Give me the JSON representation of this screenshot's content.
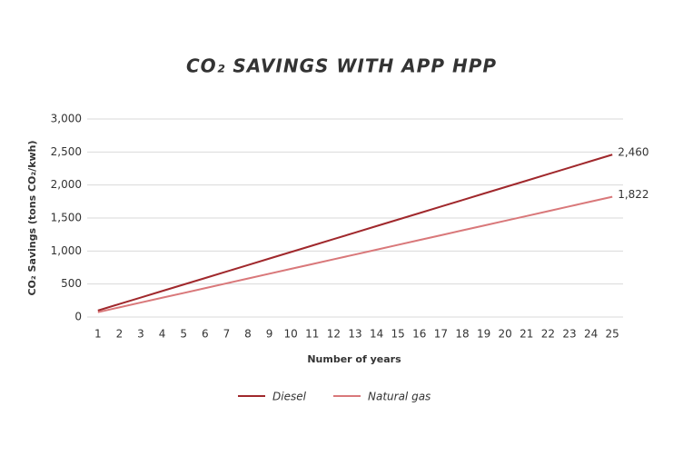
{
  "chart_data": {
    "type": "line",
    "title": "CO₂ SAVINGS WITH APP HPP",
    "x_label": "Number of years",
    "y_label": "CO₂ Savings (tons CO₂/kwh)",
    "x": [
      1,
      2,
      3,
      4,
      5,
      6,
      7,
      8,
      9,
      10,
      11,
      12,
      13,
      14,
      15,
      16,
      17,
      18,
      19,
      20,
      21,
      22,
      23,
      24,
      25
    ],
    "xlim": [
      0.5,
      25.5
    ],
    "xticks": [
      1,
      2,
      3,
      4,
      5,
      6,
      7,
      8,
      9,
      10,
      11,
      12,
      13,
      14,
      15,
      16,
      17,
      18,
      19,
      20,
      21,
      22,
      23,
      24,
      25
    ],
    "ylim": [
      0,
      3000
    ],
    "yticks": [
      0,
      500,
      {
        "value": 1000,
        "label": "1,000"
      },
      {
        "value": 1500,
        "label": "1,500"
      },
      {
        "value": 2000,
        "label": "2,000"
      },
      {
        "value": 2500,
        "label": "2,500"
      },
      {
        "value": 3000,
        "label": "3,000"
      }
    ],
    "grid": true,
    "legend": "bottom",
    "series": [
      {
        "name": "Diesel",
        "color": "#a0282c",
        "values": [
          98,
          197,
          295,
          394,
          492,
          590,
          689,
          787,
          886,
          984,
          1082,
          1181,
          1279,
          1378,
          1476,
          1574,
          1673,
          1771,
          1870,
          1968,
          2066,
          2165,
          2263,
          2362,
          2460
        ],
        "value_labels": [
          null,
          null,
          null,
          null,
          null,
          null,
          null,
          null,
          null,
          null,
          null,
          null,
          null,
          null,
          null,
          null,
          null,
          null,
          null,
          null,
          null,
          null,
          null,
          null,
          "2,460"
        ]
      },
      {
        "name": "Natural gas",
        "color": "#d9787a",
        "values": [
          73,
          146,
          219,
          292,
          364,
          437,
          510,
          583,
          656,
          729,
          802,
          875,
          947,
          1020,
          1093,
          1166,
          1239,
          1312,
          1385,
          1458,
          1530,
          1603,
          1676,
          1749,
          1822
        ],
        "value_labels": [
          null,
          null,
          null,
          null,
          null,
          null,
          null,
          null,
          null,
          null,
          null,
          null,
          null,
          null,
          null,
          null,
          null,
          null,
          null,
          null,
          null,
          null,
          null,
          null,
          "1,822"
        ]
      }
    ]
  }
}
